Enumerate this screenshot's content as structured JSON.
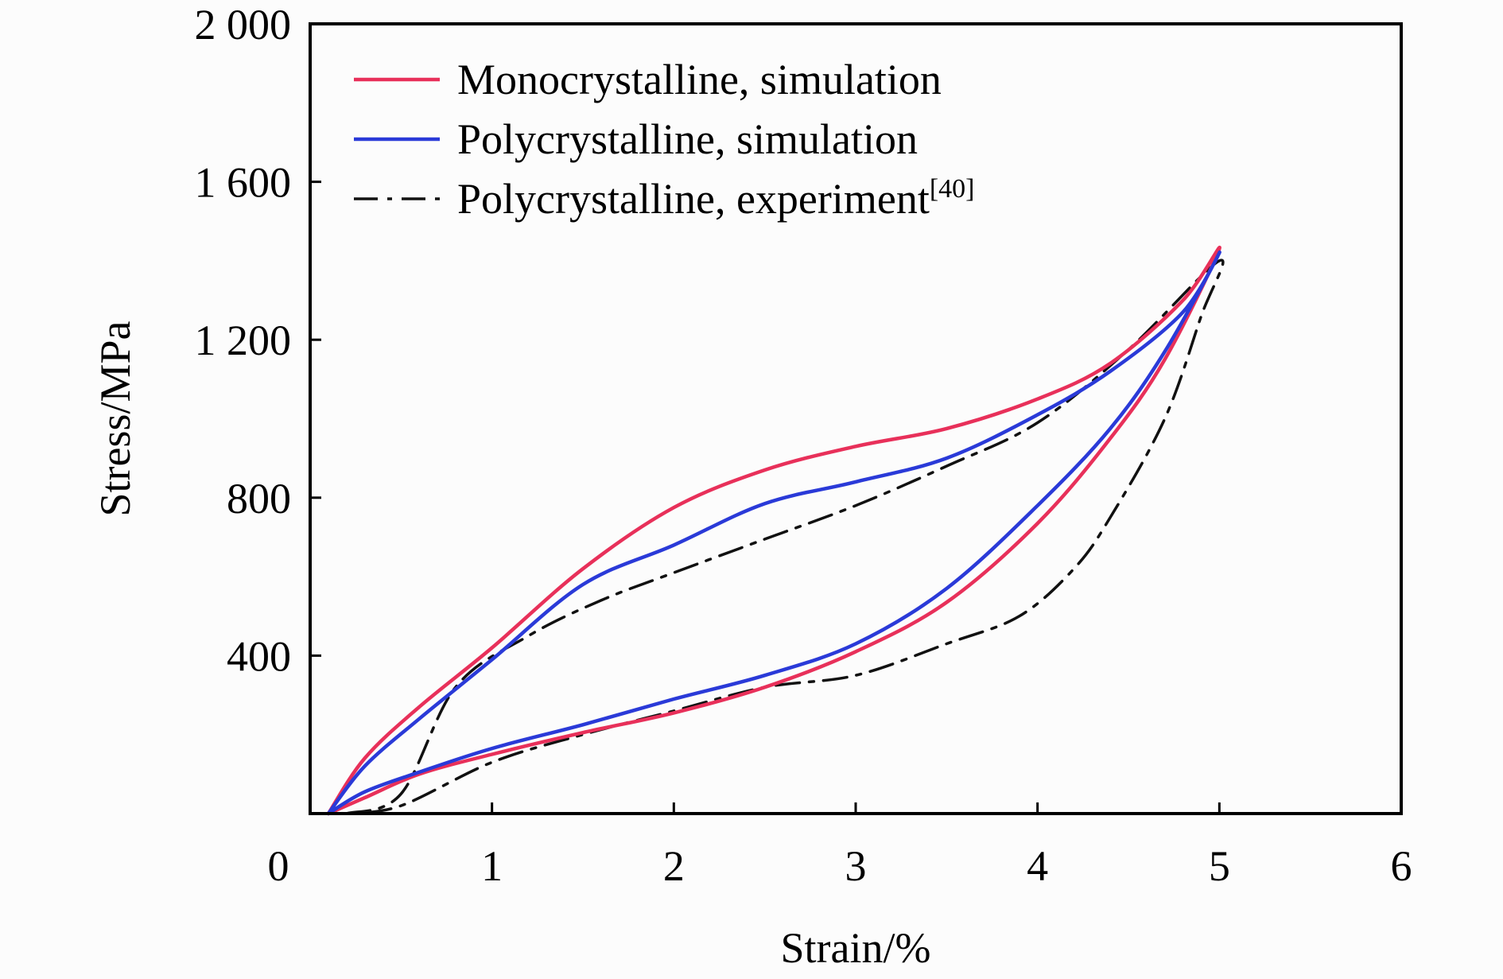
{
  "chart_data": {
    "type": "line",
    "title": "",
    "xlabel": "Strain/%",
    "ylabel": "Stress/MPa",
    "xlim": [
      0,
      6
    ],
    "ylim": [
      0,
      2000
    ],
    "x_ticks": [
      0,
      1,
      2,
      3,
      4,
      5,
      6
    ],
    "x_tick_labels": [
      "0",
      "1",
      "2",
      "3",
      "4",
      "5",
      "6"
    ],
    "y_ticks": [
      400,
      800,
      1200,
      1600,
      2000
    ],
    "y_tick_labels": [
      "400",
      "800",
      "1 200",
      "1 600",
      "2 000"
    ],
    "grid": false,
    "legend_position": "top-left",
    "series": [
      {
        "name": "Monocrystalline, simulation",
        "legend_suffix": "",
        "color": "#e8305a",
        "dash": "solid",
        "x": [
          0.1,
          0.3,
          0.6,
          1.0,
          1.5,
          2.0,
          2.5,
          3.0,
          3.5,
          4.0,
          4.4,
          4.8,
          5.0,
          4.7,
          4.4,
          4.0,
          3.5,
          3.0,
          2.5,
          2.0,
          1.5,
          1.0,
          0.6,
          0.3,
          0.1
        ],
        "y": [
          0,
          140,
          270,
          420,
          620,
          775,
          870,
          930,
          975,
          1050,
          1140,
          1300,
          1430,
          1150,
          950,
          735,
          535,
          410,
          320,
          255,
          205,
          150,
          100,
          40,
          0
        ]
      },
      {
        "name": "Polycrystalline, simulation",
        "legend_suffix": "",
        "color": "#2a3ad8",
        "dash": "solid",
        "x": [
          0.1,
          0.3,
          0.6,
          1.0,
          1.5,
          2.0,
          2.5,
          3.0,
          3.5,
          4.0,
          4.4,
          4.8,
          5.0,
          4.7,
          4.4,
          4.0,
          3.5,
          3.0,
          2.5,
          2.0,
          1.5,
          1.0,
          0.6,
          0.3,
          0.1
        ],
        "y": [
          0,
          120,
          240,
          390,
          580,
          680,
          785,
          840,
          900,
          1010,
          1120,
          1270,
          1420,
          1170,
          975,
          780,
          570,
          430,
          350,
          290,
          225,
          165,
          105,
          55,
          0
        ]
      },
      {
        "name": "Polycrystalline, experiment",
        "legend_suffix": "[40]",
        "color": "#111111",
        "dash": "dashdot",
        "x": [
          0.2,
          0.5,
          0.8,
          1.2,
          1.6,
          2.0,
          2.5,
          3.0,
          3.5,
          4.0,
          4.5,
          5.0,
          4.9,
          4.7,
          4.4,
          4.2,
          3.9,
          3.5,
          3.0,
          2.5,
          2.0,
          1.5,
          1.0,
          0.5,
          0.2
        ],
        "y": [
          0,
          50,
          320,
          450,
          540,
          610,
          695,
          780,
          880,
          990,
          1175,
          1400,
          1260,
          1000,
          750,
          620,
          500,
          430,
          350,
          320,
          260,
          200,
          130,
          20,
          0
        ]
      }
    ]
  }
}
